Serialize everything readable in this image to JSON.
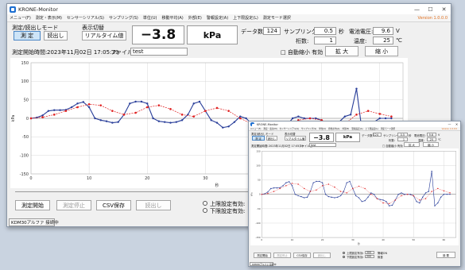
{
  "app": {
    "title": "KRONE-Monitor",
    "version": "Version 1.0.0.0",
    "minimize": "—",
    "close": "✕"
  },
  "menu": [
    "メニュー(F)",
    "測定・表示(M)",
    "センサーシリアル(S)",
    "サンプリング(S)",
    "単位(U)",
    "移動平均(A)",
    "外部(E)",
    "警報設定(A)",
    "上下限設定(L)",
    "測定モード選択"
  ],
  "controls": {
    "mode_label": "測定/読出しモード",
    "measure_btn": "測 定",
    "read_btn": "読出し",
    "display_label": "表示切替",
    "realtime_btn": "リアルタイム値",
    "value": "−3.8",
    "unit": "kPa",
    "data_count_label": "データ数:",
    "data_count": "124",
    "sampling_label": "サンプリング:",
    "sampling_value": "0.5",
    "sampling_unit": "秒",
    "voltage_label": "電池電圧:",
    "voltage_value": "9.6",
    "voltage_unit": "V",
    "decimal_label": "桁数:",
    "decimal_value": "1",
    "temp_label": "温度:",
    "temp_value": "25",
    "temp_unit": "℃",
    "start_time_label": "測定開始時間:",
    "start_time": "2023年11月02日 17:05:39",
    "filename_label": "ファイル名:",
    "filename": "test",
    "auto_scale": "□ 自動縮小 有効",
    "zoom_in": "拡 大",
    "zoom_out": "縮 小",
    "start_btn": "測定開始",
    "stop_btn": "測定停止",
    "csv_btn": "CSV保存",
    "read_out_btn": "読出し",
    "upper_limit": "上限設定有効:",
    "lower_limit": "下限設定有効:",
    "status": "KDM30アルファ 接続中",
    "small_upper_value": "300",
    "small_lower_value": "-300",
    "small_buzzer": "警報ON",
    "small_silent": "無音",
    "small_settings_btn": "設 置"
  },
  "chart_data": {
    "type": "line",
    "title": "",
    "xlabel": "秒",
    "ylabel": "kPa",
    "xlim": [
      0,
      64
    ],
    "ylim": [
      -150,
      150
    ],
    "xticks": [
      0,
      10,
      20,
      30,
      40,
      50,
      60
    ],
    "yticks": [
      -150,
      -100,
      -50,
      0,
      50,
      100,
      150
    ],
    "colors": {
      "measured": "#2a3f9a",
      "moving_average": "#e02020"
    },
    "series": [
      {
        "name": "",
        "x": [
          0,
          1,
          2,
          3,
          4,
          5,
          6,
          7,
          8,
          9,
          10,
          11,
          12,
          13,
          14,
          15,
          16,
          17,
          18,
          19,
          20,
          21,
          22,
          23,
          24,
          25,
          26,
          27,
          28,
          29,
          30,
          31,
          32,
          33,
          34,
          35,
          36,
          37,
          38,
          39,
          40,
          41,
          42,
          43,
          44,
          45,
          46,
          47,
          48,
          49,
          50,
          51,
          52,
          53,
          54,
          55,
          56,
          57,
          58,
          59,
          60,
          61,
          62
        ],
        "values": [
          0,
          2,
          8,
          20,
          22,
          22,
          23,
          30,
          40,
          44,
          30,
          0,
          -5,
          -8,
          -12,
          -10,
          10,
          40,
          45,
          45,
          40,
          0,
          -8,
          -10,
          -12,
          -10,
          -5,
          10,
          40,
          45,
          20,
          -5,
          -12,
          -25,
          -22,
          -10,
          5,
          0,
          -15,
          -18,
          -20,
          -25,
          -40,
          -38,
          -20,
          0,
          5,
          0,
          0,
          0,
          -5,
          -25,
          -30,
          -10,
          5,
          10,
          80,
          -40,
          -30,
          -10,
          0,
          0,
          0
        ]
      },
      {
        "name": "",
        "x": [
          0,
          2,
          4,
          6,
          8,
          10,
          12,
          14,
          16,
          18,
          20,
          22,
          24,
          26,
          28,
          30,
          32,
          34,
          36,
          38,
          40,
          42,
          44,
          46,
          48,
          50,
          52,
          54,
          56,
          58,
          60,
          62
        ],
        "values": [
          0,
          3,
          10,
          20,
          30,
          38,
          35,
          20,
          10,
          15,
          30,
          35,
          25,
          10,
          5,
          20,
          28,
          20,
          0,
          -15,
          -30,
          -32,
          -20,
          -5,
          0,
          -5,
          -20,
          -15,
          10,
          20,
          12,
          5
        ]
      }
    ]
  }
}
